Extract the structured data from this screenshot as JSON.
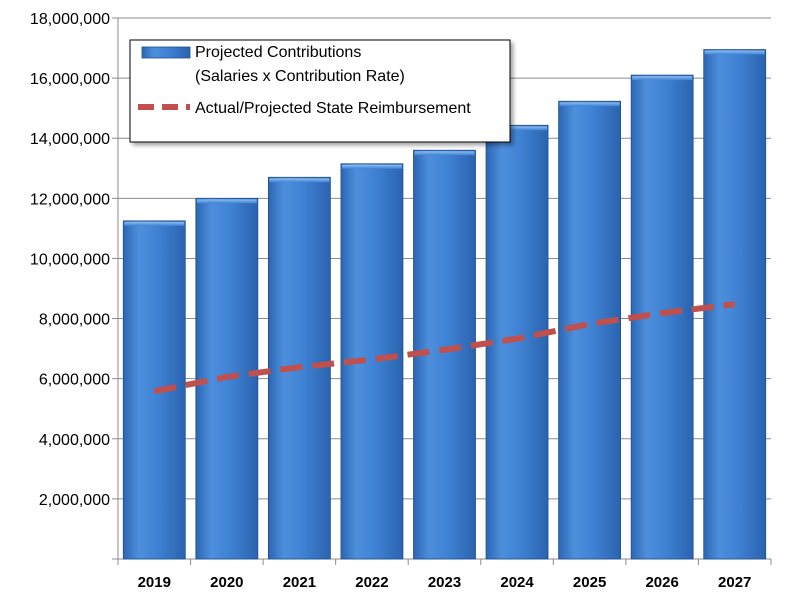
{
  "chart_data": {
    "type": "bar",
    "categories": [
      "2019",
      "2020",
      "2021",
      "2022",
      "2023",
      "2024",
      "2025",
      "2026",
      "2027"
    ],
    "series": [
      {
        "name": "Projected Contributions",
        "name_line2": "(Salaries x Contribution Rate)",
        "type": "bar",
        "color": "#3c7fd2",
        "values": [
          11250000,
          12000000,
          12700000,
          13150000,
          13600000,
          14430000,
          15230000,
          16100000,
          16950000
        ]
      },
      {
        "name": "Actual/Projected State Reimbursement",
        "type": "line",
        "style": "dashed",
        "color": "#c0504d",
        "values": [
          5580000,
          6060000,
          6380000,
          6640000,
          6960000,
          7330000,
          7820000,
          8180000,
          8480000
        ]
      }
    ],
    "ylim": [
      0,
      18000000
    ],
    "yticks": [
      0,
      2000000,
      4000000,
      6000000,
      8000000,
      10000000,
      12000000,
      14000000,
      16000000,
      18000000
    ],
    "ytick_labels": [
      "",
      "2,000,000",
      "4,000,000",
      "6,000,000",
      "8,000,000",
      "10,000,000",
      "12,000,000",
      "14,000,000",
      "16,000,000",
      "18,000,000"
    ],
    "grid": true,
    "legend_position": "top-left",
    "title": "",
    "xlabel": "",
    "ylabel": ""
  }
}
